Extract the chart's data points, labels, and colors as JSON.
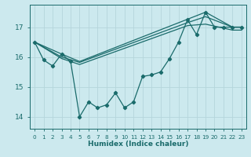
{
  "xlabel": "Humidex (Indice chaleur)",
  "bg_color": "#cce9ee",
  "grid_color": "#b5d5db",
  "line_color": "#1a6b6b",
  "xlim": [
    -0.5,
    23.5
  ],
  "ylim": [
    13.6,
    17.75
  ],
  "yticks": [
    14,
    15,
    16,
    17
  ],
  "xticks": [
    0,
    1,
    2,
    3,
    4,
    5,
    6,
    7,
    8,
    9,
    10,
    11,
    12,
    13,
    14,
    15,
    16,
    17,
    18,
    19,
    20,
    21,
    22,
    23
  ],
  "series_marker_x": [
    0,
    1,
    2,
    3,
    4,
    5,
    6,
    7,
    8,
    9,
    10,
    11,
    12,
    13,
    14,
    15,
    16,
    17,
    18,
    19,
    20,
    21,
    22,
    23
  ],
  "series_marker_y": [
    16.5,
    15.9,
    15.7,
    16.1,
    15.85,
    14.0,
    14.5,
    14.3,
    14.4,
    14.8,
    14.3,
    14.5,
    15.35,
    15.4,
    15.5,
    15.95,
    16.5,
    17.25,
    16.75,
    17.5,
    17.0,
    17.0,
    17.0,
    17.0
  ],
  "line_a_x": [
    0,
    3,
    5,
    19,
    22,
    23
  ],
  "line_a_y": [
    16.5,
    16.1,
    15.85,
    17.5,
    17.0,
    17.0
  ],
  "line_b_x": [
    0,
    3,
    5,
    17,
    19,
    22,
    23
  ],
  "line_b_y": [
    16.5,
    15.95,
    15.75,
    17.05,
    17.1,
    16.9,
    16.9
  ],
  "line_c_x": [
    0,
    3,
    5,
    17,
    19,
    22,
    23
  ],
  "line_c_y": [
    16.5,
    16.0,
    15.82,
    17.15,
    17.35,
    17.0,
    17.0
  ]
}
